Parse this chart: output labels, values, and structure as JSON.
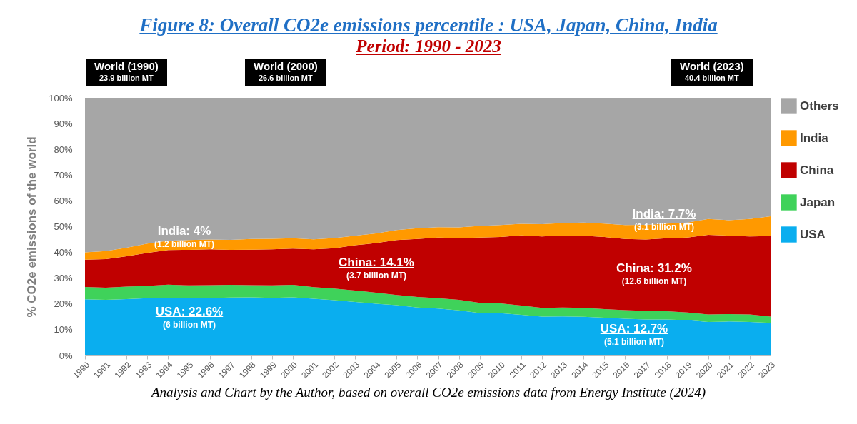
{
  "chart_data": {
    "type": "area",
    "stacked": true,
    "title": "Figure 8: Overall CO2e emissions percentile : USA, Japan, China, India",
    "subtitle": "Period: 1990 - 2023",
    "ylabel": "% CO2e emissions of the world",
    "categories": [
      "1990",
      "1991",
      "1992",
      "1993",
      "1994",
      "1995",
      "1996",
      "1997",
      "1998",
      "1999",
      "2000",
      "2001",
      "2002",
      "2003",
      "2004",
      "2005",
      "2006",
      "2007",
      "2008",
      "2009",
      "2010",
      "2011",
      "2012",
      "2013",
      "2014",
      "2015",
      "2016",
      "2017",
      "2018",
      "2019",
      "2020",
      "2021",
      "2022",
      "2023"
    ],
    "series": [
      {
        "name": "USA",
        "color": "#0aaeef",
        "values": [
          21.8,
          21.6,
          21.9,
          22.2,
          22.4,
          22.2,
          22.3,
          22.5,
          22.6,
          22.4,
          22.6,
          22.0,
          21.5,
          20.8,
          20.1,
          19.5,
          18.6,
          18.2,
          17.5,
          16.5,
          16.4,
          15.8,
          15.1,
          15.2,
          15.0,
          14.7,
          14.3,
          14.0,
          14.0,
          13.7,
          13.0,
          13.2,
          13.0,
          12.7
        ]
      },
      {
        "name": "Japan",
        "color": "#3fd25a",
        "values": [
          4.8,
          4.7,
          4.8,
          4.8,
          5.1,
          5.0,
          5.0,
          4.9,
          4.7,
          4.8,
          4.8,
          4.5,
          4.5,
          4.4,
          4.3,
          4.0,
          4.1,
          4.0,
          4.1,
          3.9,
          3.8,
          3.6,
          3.4,
          3.4,
          3.5,
          3.3,
          3.3,
          3.3,
          3.2,
          3.0,
          2.9,
          2.9,
          2.9,
          2.4
        ]
      },
      {
        "name": "China",
        "color": "#c00000",
        "values": [
          10.6,
          11.1,
          11.8,
          12.8,
          13.4,
          13.8,
          13.9,
          13.6,
          13.8,
          14.0,
          14.1,
          14.7,
          15.6,
          17.6,
          19.2,
          21.3,
          22.5,
          23.6,
          24.0,
          25.4,
          25.8,
          27.2,
          27.7,
          27.9,
          28.0,
          28.0,
          27.6,
          27.7,
          28.3,
          29.1,
          30.9,
          30.4,
          30.3,
          31.2
        ]
      },
      {
        "name": "India",
        "color": "#ff9900",
        "values": [
          2.8,
          3.1,
          3.3,
          3.6,
          3.6,
          3.8,
          3.8,
          3.9,
          4.1,
          4.1,
          4.0,
          3.9,
          4.0,
          3.7,
          3.8,
          3.9,
          4.2,
          4.0,
          4.1,
          4.5,
          4.6,
          4.5,
          4.8,
          4.9,
          5.1,
          5.2,
          5.4,
          5.7,
          5.7,
          5.8,
          6.2,
          6.0,
          6.8,
          7.7
        ]
      },
      {
        "name": "Others",
        "color": "#a6a6a6",
        "values": [
          60.0,
          59.5,
          58.2,
          56.6,
          55.5,
          55.2,
          55.0,
          55.1,
          54.8,
          54.7,
          54.5,
          54.9,
          54.4,
          53.5,
          52.6,
          51.3,
          50.6,
          50.2,
          50.3,
          49.7,
          49.4,
          48.9,
          49.0,
          48.6,
          48.4,
          48.8,
          49.4,
          49.3,
          48.8,
          48.4,
          47.0,
          47.5,
          47.0,
          46.0
        ]
      }
    ],
    "ylim": [
      0,
      100
    ],
    "yticks": [
      {
        "value": 0,
        "label": "0%"
      },
      {
        "value": 10,
        "label": "10%"
      },
      {
        "value": 20,
        "label": "20%"
      },
      {
        "value": 30,
        "label": "30%"
      },
      {
        "value": 40,
        "label": "40%"
      },
      {
        "value": 50,
        "label": "50%"
      },
      {
        "value": 60,
        "label": "60%"
      },
      {
        "value": 70,
        "label": "70%"
      },
      {
        "value": 80,
        "label": "80%"
      },
      {
        "value": 90,
        "label": "90%"
      },
      {
        "value": 100,
        "label": "100%"
      }
    ],
    "legend": "right",
    "annotations": [
      "World (1990)\n23.9 billion MT",
      "World (2000)\n26.6 billion MT",
      "World (2023)\n40.4 billion MT",
      "India: 4%\n(1.2 billion MT)",
      "China: 14.1%\n(3.7 billion MT)",
      "USA: 22.6%\n(6 billion MT)",
      "India: 7.7%\n(3.1 billion MT)",
      "China: 31.2%\n(12.6 billion MT)",
      "USA: 12.7%\n(5.1 billion MT)",
      "Analysis and Chart by the Author, based on overall CO2e emissions data from Energy Institute (2024)"
    ]
  }
}
